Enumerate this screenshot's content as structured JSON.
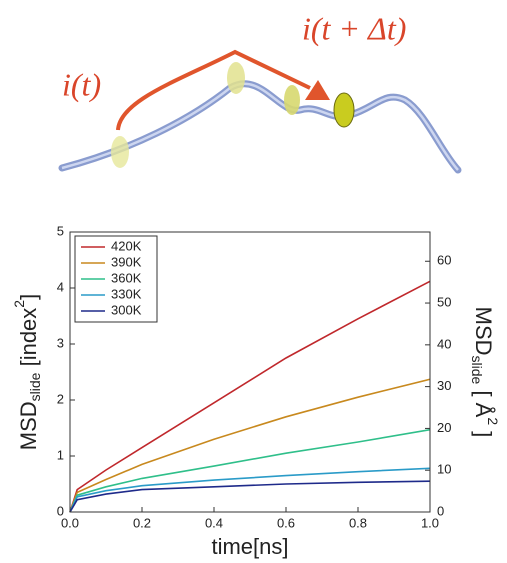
{
  "diagram": {
    "label_start": "i(t)",
    "label_end": "i(t + Δt)"
  },
  "chart_data": {
    "type": "line",
    "x_label": "time[ns]",
    "y_label": {
      "main": "MSD",
      "sub": "slide",
      "rest": " [index",
      "sup": "2",
      "end": "]"
    },
    "y2_label": {
      "main": "MSD",
      "sub": "slide",
      "rest": " [ Å",
      "sup": "2",
      "end": " ]"
    },
    "x": [
      0,
      0.02,
      0.1,
      0.2,
      0.4,
      0.6,
      0.8,
      1.0
    ],
    "series": [
      {
        "name": "420K",
        "color": "#c0282c",
        "values": [
          0,
          0.4,
          0.75,
          1.15,
          1.95,
          2.75,
          3.45,
          4.12
        ]
      },
      {
        "name": "390K",
        "color": "#c8891e",
        "values": [
          0,
          0.35,
          0.58,
          0.85,
          1.3,
          1.7,
          2.05,
          2.37
        ]
      },
      {
        "name": "360K",
        "color": "#2fbf8a",
        "values": [
          0,
          0.3,
          0.45,
          0.6,
          0.82,
          1.05,
          1.25,
          1.47
        ]
      },
      {
        "name": "330K",
        "color": "#2a9bc8",
        "values": [
          0,
          0.27,
          0.38,
          0.47,
          0.57,
          0.65,
          0.72,
          0.78
        ]
      },
      {
        "name": "300K",
        "color": "#1e2a8a",
        "values": [
          0,
          0.22,
          0.32,
          0.4,
          0.45,
          0.5,
          0.53,
          0.55
        ]
      }
    ],
    "xlim": [
      0,
      1.0
    ],
    "xticks": [
      {
        "value": 0,
        "label": "0.0"
      },
      0.2,
      0.4,
      0.6,
      0.8,
      {
        "value": 1.0,
        "label": "1.0"
      }
    ],
    "ylim": [
      0,
      5
    ],
    "yticks": [
      0,
      1,
      2,
      3,
      4,
      5
    ],
    "y2lim": [
      0,
      67
    ],
    "y2ticks": [
      0,
      10,
      20,
      30,
      40,
      50,
      60
    ],
    "legend": "upper-left"
  }
}
